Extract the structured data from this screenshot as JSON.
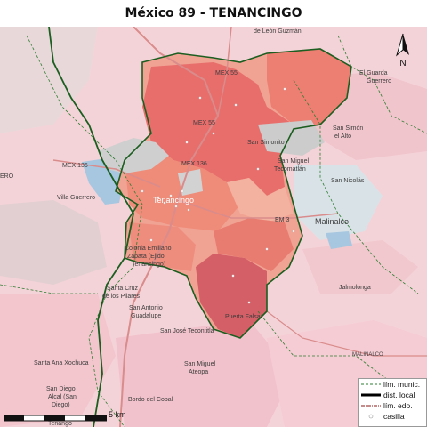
{
  "map": {
    "title": "México 89 - TENANCINGO",
    "labels": {
      "de_leon_guzman": "de León Guzmán",
      "mex55_top": "MEX 55",
      "el_guarda": "El Guarda",
      "guerrero": "Guerrero",
      "mex55_mid": "MEX 55",
      "san_simon_alto": "San Simón",
      "el_alto": "el Alto",
      "mex136": "MEX 136",
      "san_simonito": "San Simonito",
      "san_miguel_tecomatlan_1": "San Miguel",
      "san_miguel_tecomatlan_2": "Tecomatlán",
      "san_nicolas": "San Nicolás",
      "villa_guerrero": "Villa Guerrero",
      "tenancingo": "Tenancingo",
      "em_road": "EM 3",
      "malinalco": "Malinalco",
      "colonia_1": "Colonia Emiliano",
      "colonia_2": "Zapata (Ejido",
      "colonia_3": "Tenancingo)",
      "jalmolonga": "Jalmolonga",
      "santa_cruz_1": "Santa Cruz",
      "santa_cruz_2": "de los Pilares",
      "san_antonio_1": "San Antonio",
      "san_antonio_2": "Guadalupe",
      "puerta_falsa": "Puerta Falsa",
      "san_jose": "San José Tecontitla",
      "malinalco_south": "MALINALCO",
      "santa_ana": "Santa Ana Xochuca",
      "san_miguel_ateopa_1": "San Miguel",
      "san_miguel_ateopa_2": "Ateopa",
      "san_diego_1": "San Diego",
      "san_diego_2": "Alcal (San",
      "san_diego_3": "Diego)",
      "bordo_copal": "Bordo del Copal",
      "tenango": "Tenango",
      "left_edge": "ERO"
    },
    "legend": {
      "items": [
        {
          "label": "lím. munic.",
          "color": "#2e7d32"
        },
        {
          "label": "dist. local",
          "color": "#000000"
        },
        {
          "label": "lím. edo.",
          "color": "#8b1a1a"
        },
        {
          "label": "casilla",
          "color": "#ffffff"
        }
      ]
    },
    "scale": {
      "text": "5 km"
    },
    "north": {
      "label": "N"
    }
  }
}
